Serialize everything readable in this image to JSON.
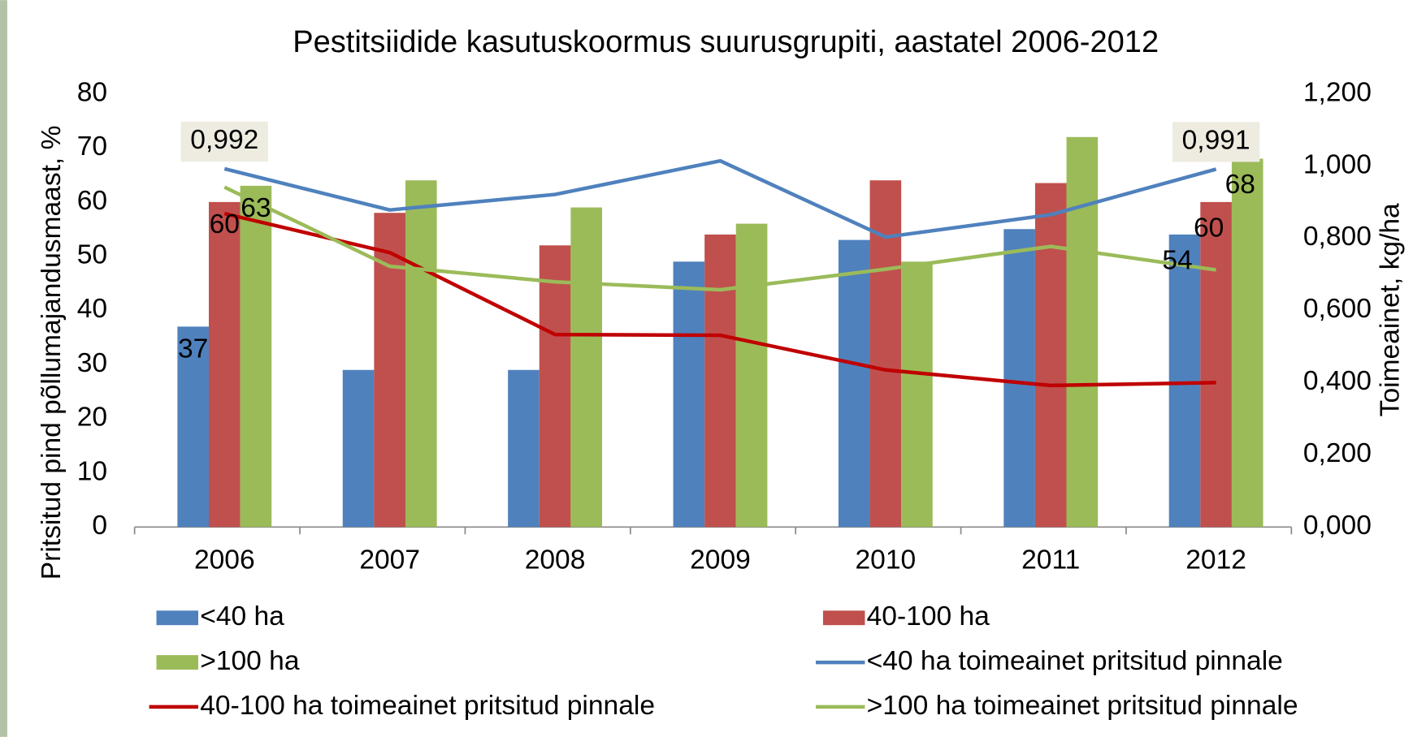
{
  "chart_data": {
    "type": "bar-line",
    "title": "Pestitsiidide kasutuskoormus suurusgrupiti, aastatel 2006-2012",
    "y_label": "Pritsitud pind põllumajandusmaast, %",
    "y2_label": "Toimeainet, kg/ha",
    "categories": [
      "2006",
      "2007",
      "2008",
      "2009",
      "2010",
      "2011",
      "2012"
    ],
    "ylim": [
      0,
      80
    ],
    "yticks": [
      0,
      10,
      20,
      30,
      40,
      50,
      60,
      70,
      80
    ],
    "y2lim": [
      0,
      1.2
    ],
    "y2ticks": [
      {
        "value": 0,
        "label": "0,000"
      },
      {
        "value": 0.2,
        "label": "0,200"
      },
      {
        "value": 0.4,
        "label": "0,400"
      },
      {
        "value": 0.6,
        "label": "0,600"
      },
      {
        "value": 0.8,
        "label": "0,800"
      },
      {
        "value": 1.0,
        "label": "1,000"
      },
      {
        "value": 1.2,
        "label": "1,200"
      }
    ],
    "labeled_points": [
      0,
      6
    ],
    "legend": "bottom",
    "series": [
      {
        "name": "<40 ha",
        "type": "bar",
        "color": "#4f81bd",
        "values": [
          37,
          29,
          29,
          49,
          53,
          55,
          54
        ]
      },
      {
        "name": "40-100 ha",
        "type": "bar",
        "color": "#c0504d",
        "values": [
          60,
          58,
          52,
          54,
          64,
          63.5,
          60
        ]
      },
      {
        "name": ">100 ha",
        "type": "bar",
        "color": "#9bbb59",
        "values": [
          63,
          64,
          59,
          56,
          49,
          72,
          68
        ]
      },
      {
        "name": "<40 ha toimeainet pritsitud pinnale",
        "type": "line",
        "axis": "y2",
        "color": "#4f81bd",
        "values": [
          0.992,
          0.878,
          0.921,
          1.014,
          0.803,
          0.865,
          0.991
        ],
        "value_labels": [
          "0,992",
          null,
          null,
          null,
          null,
          null,
          "0,991"
        ]
      },
      {
        "name": "40-100 ha toimeainet pritsitud pinnale",
        "type": "line",
        "axis": "y2",
        "color": "#c00000",
        "values": [
          0.868,
          0.76,
          0.533,
          0.531,
          0.435,
          0.392,
          0.4
        ]
      },
      {
        "name": ">100 ha toimeainet pritsitud pinnale",
        "type": "line",
        "axis": "y2",
        "color": "#9bbb59",
        "values": [
          0.941,
          0.722,
          0.679,
          0.657,
          0.714,
          0.777,
          0.712
        ]
      }
    ]
  }
}
